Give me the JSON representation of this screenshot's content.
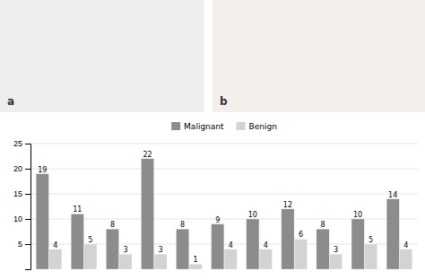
{
  "chart_data": {
    "type": "bar",
    "annotations": [
      "a",
      "b"
    ],
    "categories": [
      null,
      null,
      null,
      null,
      null,
      null,
      null,
      null,
      null,
      null,
      null
    ],
    "series": [
      {
        "name": "Malignant",
        "color": "#8c8c8c",
        "values": [
          19,
          11,
          8,
          22,
          8,
          9,
          10,
          12,
          8,
          10,
          14
        ]
      },
      {
        "name": "Benign",
        "color": "#d3d3d3",
        "values": [
          4,
          5,
          3,
          3,
          1,
          4,
          4,
          6,
          3,
          5,
          4
        ]
      }
    ],
    "ylim": [
      0,
      25
    ],
    "yticks": [
      5,
      10,
      15,
      20,
      25
    ],
    "grid": true,
    "legend": "top",
    "data_labels": true,
    "tick_labels": "y"
  }
}
